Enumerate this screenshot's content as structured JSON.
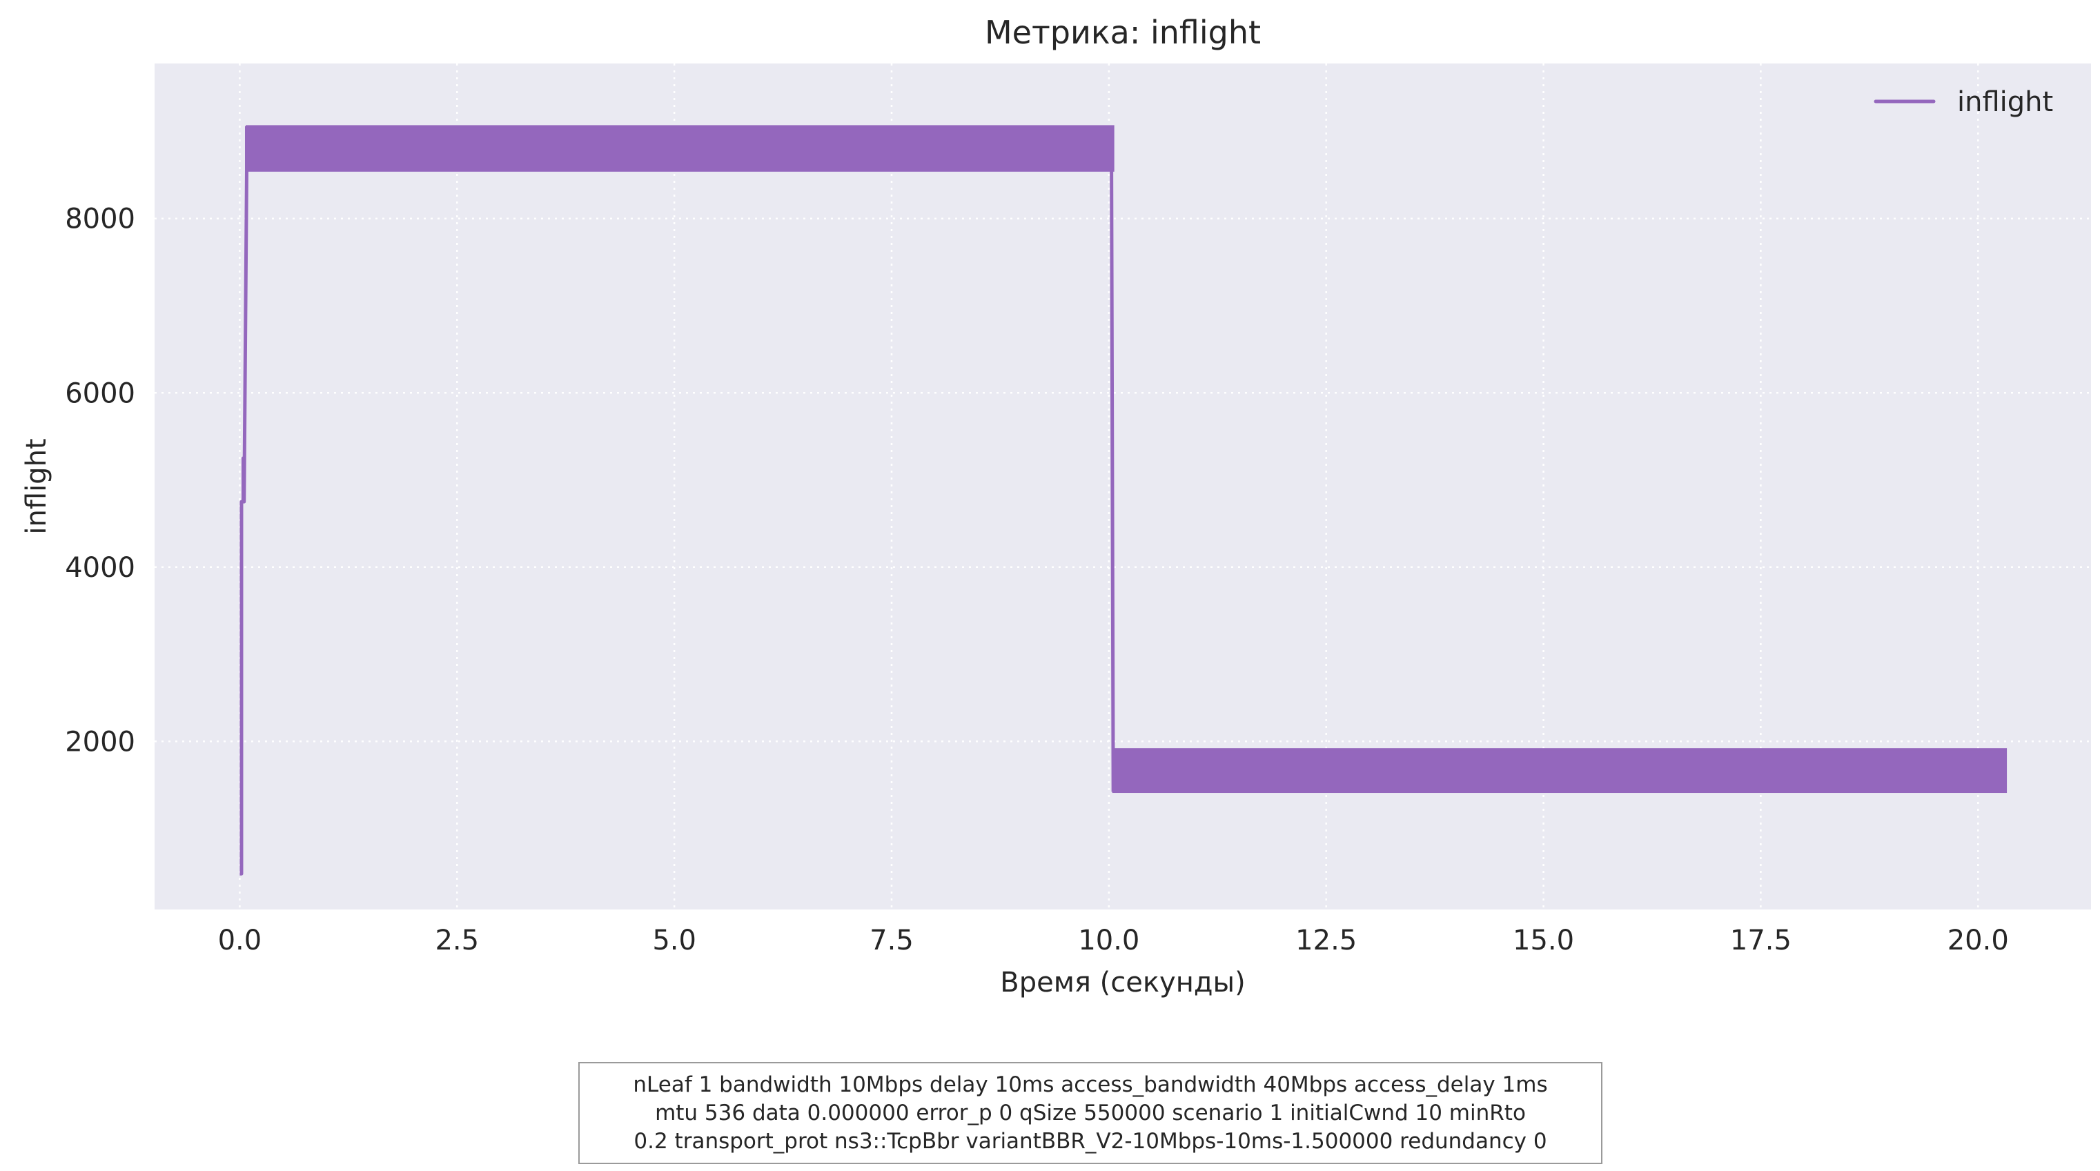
{
  "chart_data": {
    "type": "line",
    "title": "Метрика: inflight",
    "xlabel": "Время (секунды)",
    "ylabel": "inflight",
    "xlim": [
      -0.98,
      21.3
    ],
    "ylim": [
      70,
      9780
    ],
    "x_ticks": [
      0.0,
      2.5,
      5.0,
      7.5,
      10.0,
      12.5,
      15.0,
      17.5,
      20.0
    ],
    "x_tick_labels": [
      "0.0",
      "2.5",
      "5.0",
      "7.5",
      "10.0",
      "12.5",
      "15.0",
      "17.5",
      "20.0"
    ],
    "y_ticks": [
      2000,
      4000,
      6000,
      8000
    ],
    "y_tick_labels": [
      "2000",
      "4000",
      "6000",
      "8000"
    ],
    "grid": true,
    "legend_position": "top-right",
    "colors": {
      "series": "#9467bd",
      "plot_background": "#eaeaf2",
      "grid": "#ffffff",
      "text": "#262626"
    },
    "series": [
      {
        "name": "inflight",
        "color": "#9467bd",
        "points": [
          [
            0.0,
            480
          ],
          [
            0.02,
            480
          ],
          [
            0.02,
            4750
          ],
          [
            0.04,
            4750
          ],
          [
            0.04,
            5250
          ],
          [
            0.05,
            4750
          ],
          [
            0.08,
            8550
          ],
          [
            0.08,
            9060
          ]
        ],
        "oscillation_bands": [
          {
            "x_start": 0.08,
            "x_end": 10.05,
            "low": 8550,
            "high": 9060
          },
          {
            "x_start": 10.05,
            "x_end": 20.32,
            "low": 1420,
            "high": 1910
          }
        ],
        "transition": [
          [
            10.03,
            9060
          ],
          [
            10.03,
            8550
          ],
          [
            10.05,
            1420
          ]
        ]
      }
    ]
  },
  "caption": {
    "lines": [
      "nLeaf 1 bandwidth 10Mbps delay  10ms access_bandwidth 40Mbps access_delay 1ms",
      "mtu 536 data  0.000000 error_p 0 qSize 550000 scenario 1 initialCwnd  10 minRto",
      "0.2 transport_prot ns3::TcpBbr variantBBR_V2-10Mbps-10ms-1.500000 redundancy 0"
    ]
  }
}
